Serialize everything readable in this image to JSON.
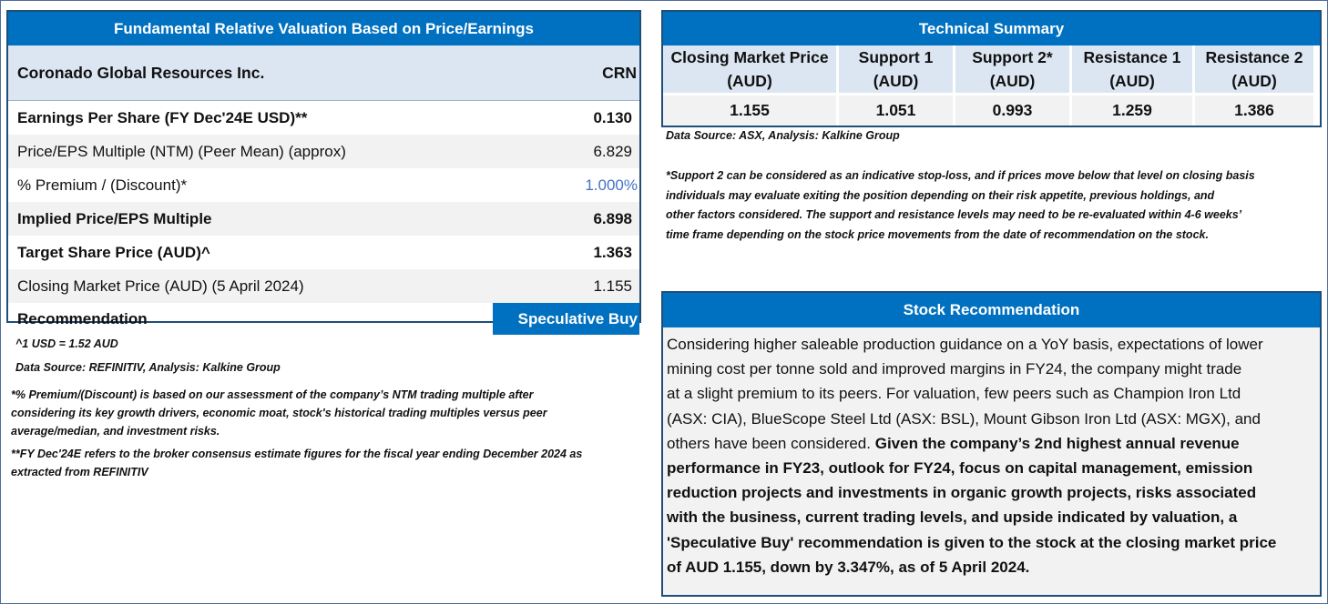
{
  "valuation": {
    "title": "Fundamental Relative Valuation Based on Price/Earnings",
    "company": "Coronado Global Resources Inc.",
    "ticker": "CRN",
    "rows": [
      {
        "label": "Earnings Per Share (FY Dec'24E USD)**",
        "value": "0.130"
      },
      {
        "label": "Price/EPS Multiple (NTM) (Peer Mean) (approx)",
        "value": "6.829"
      },
      {
        "label": "% Premium / (Discount)*",
        "value": "1.000%"
      },
      {
        "label": "Implied Price/EPS Multiple",
        "value": "6.898"
      },
      {
        "label": "Target Share Price (AUD)^",
        "value": "1.363"
      },
      {
        "label": "Closing Market Price (AUD) (5 April 2024)",
        "value": "1.155"
      },
      {
        "label": "Recommendation",
        "value": "Speculative Buy"
      }
    ]
  },
  "left_notes": {
    "fx": "^1 USD = 1.52 AUD",
    "source": "Data Source: REFINITIV, Analysis: Kalkine Group",
    "premium_note_1": "*% Premium/(Discount) is based on our assessment of the company’s NTM trading multiple after",
    "premium_note_2": "considering its key growth drivers, economic moat, stock's historical trading multiples versus peer",
    "premium_note_3": "average/median, and investment risks.",
    "fy_note_1": "**FY Dec'24E refers to the broker consensus estimate figures for the fiscal year ending December 2024 as",
    "fy_note_2": "extracted from REFINITIV"
  },
  "technical": {
    "title": "Technical Summary",
    "columns": [
      {
        "h1": "Closing Market Price",
        "h2": "(AUD)",
        "value": "1.155"
      },
      {
        "h1": "Support 1",
        "h2": "(AUD)",
        "value": "1.051"
      },
      {
        "h1": "Support 2*",
        "h2": "(AUD)",
        "value": "0.993"
      },
      {
        "h1": "Resistance 1",
        "h2": "(AUD)",
        "value": "1.259"
      },
      {
        "h1": "Resistance 2",
        "h2": "(AUD)",
        "value": "1.386"
      }
    ],
    "source": "Data Source: ASX, Analysis: Kalkine Group",
    "note_1": "*Support 2 can be considered as an indicative stop-loss, and if prices move below that level on closing basis",
    "note_2": "individuals may evaluate exiting the position depending on their risk appetite, previous holdings, and",
    "note_3": "other factors considered. The support and resistance levels may need to be re-evaluated within 4-6 weeks’",
    "note_4": "time frame depending on the stock price movements from the date of recommendation on the stock."
  },
  "stock_rec": {
    "title": "Stock Recommendation",
    "lines_plain": [
      "Considering higher saleable production guidance on a YoY basis, expectations of lower",
      "mining cost per tonne sold and improved margins in FY24, the company might trade",
      "at a slight premium to its peers. For valuation, few peers such as Champion Iron Ltd",
      "(ASX: CIA), BlueScope Steel Ltd (ASX: BSL), Mount Gibson Iron Ltd (ASX: MGX), and"
    ],
    "line5_plain": "others have been considered. ",
    "line5_bold": "Given the company’s 2nd highest annual revenue",
    "lines_bold": [
      "performance in FY23, outlook for FY24, focus on capital management, emission",
      "reduction projects and investments in organic growth projects, risks associated",
      "with the business, current trading levels, and upside indicated by valuation, a",
      "'Speculative Buy' recommendation is given to the stock at the closing market price",
      "of AUD 1.155, down by 3.347%, as of 5 April 2024."
    ]
  }
}
